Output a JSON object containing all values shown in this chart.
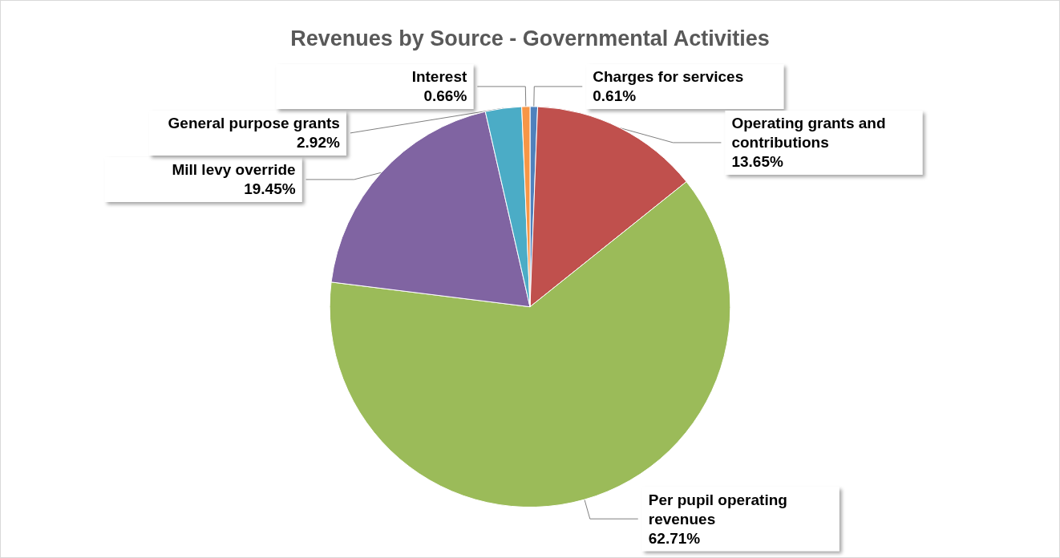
{
  "chart_data": {
    "type": "pie",
    "title": "Revenues by Source - Governmental Activities",
    "categories": [
      "Charges for services",
      "Operating grants and contributions",
      "Per pupil operating revenues",
      "Mill levy override",
      "General purpose grants",
      "Interest"
    ],
    "values": [
      0.61,
      13.65,
      62.71,
      19.45,
      2.92,
      0.66
    ],
    "value_labels": [
      "0.61%",
      "13.65%",
      "62.71%",
      "19.45%",
      "2.92%",
      "0.66%"
    ],
    "colors": [
      "#4f81bd",
      "#c0504d",
      "#9bbb59",
      "#8064a2",
      "#4bacc6",
      "#f79646"
    ],
    "legend": false
  }
}
